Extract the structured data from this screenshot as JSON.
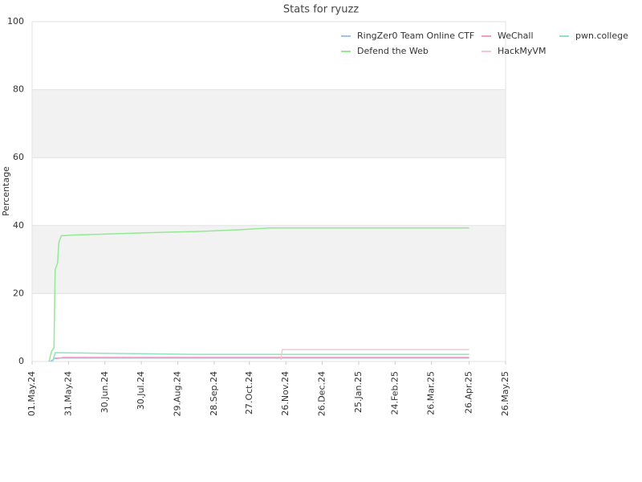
{
  "chart_data": {
    "type": "line",
    "title": "Stats for ryuzz",
    "y_label": "Percentage",
    "ylim": [
      0,
      100
    ],
    "yticks": [
      0,
      20,
      40,
      60,
      80,
      100
    ],
    "xlim": [
      "2024-05-01",
      "2025-05-26"
    ],
    "xticks": [
      {
        "value": "2024-05-01",
        "label": "01.May.24"
      },
      {
        "value": "2024-05-31",
        "label": "31.May.24"
      },
      {
        "value": "2024-06-30",
        "label": "30.Jun.24"
      },
      {
        "value": "2024-07-30",
        "label": "30.Jul.24"
      },
      {
        "value": "2024-08-29",
        "label": "29.Aug.24"
      },
      {
        "value": "2024-09-28",
        "label": "28.Sep.24"
      },
      {
        "value": "2024-10-27",
        "label": "27.Oct.24"
      },
      {
        "value": "2024-11-26",
        "label": "26.Nov.24"
      },
      {
        "value": "2024-12-26",
        "label": "26.Dec.24"
      },
      {
        "value": "2025-01-25",
        "label": "25.Jan.25"
      },
      {
        "value": "2025-02-24",
        "label": "24.Feb.25"
      },
      {
        "value": "2025-03-26",
        "label": "26.Mar.25"
      },
      {
        "value": "2025-04-26",
        "label": "26.Apr.25"
      },
      {
        "value": "2025-05-26",
        "label": "26.May.25"
      }
    ],
    "grid": true,
    "legend": "top-right",
    "series": [
      {
        "name": "RingZer0 Team Online CTF",
        "color": "#9cc3ee",
        "x": [
          "2024-05-16",
          "2024-05-20",
          "2025-04-26"
        ],
        "values": [
          0,
          1,
          1
        ]
      },
      {
        "name": "WeChall",
        "color": "#f2a0b6",
        "x": [
          "2024-05-20",
          "2024-05-27",
          "2025-04-26"
        ],
        "values": [
          0.8,
          1.2,
          1.2
        ]
      },
      {
        "name": "pwn.college",
        "color": "#8fe3c2",
        "x": [
          "2024-05-18",
          "2024-05-20",
          "2024-07-06",
          "2024-09-12",
          "2025-04-26"
        ],
        "values": [
          0,
          2.6,
          2.4,
          2.1,
          2.1
        ]
      },
      {
        "name": "Defend the Web",
        "color": "#92ea92",
        "x": [
          "2024-05-15",
          "2024-05-17",
          "2024-05-19",
          "2024-05-20",
          "2024-05-22",
          "2024-05-23",
          "2024-05-25",
          "2024-06-03",
          "2024-06-30",
          "2024-07-26",
          "2024-08-15",
          "2024-09-17",
          "2024-10-20",
          "2024-11-13",
          "2025-04-26"
        ],
        "values": [
          0,
          3,
          4,
          27,
          29,
          35,
          37,
          37.2,
          37.5,
          37.8,
          38,
          38.3,
          38.8,
          39.3,
          39.3
        ]
      },
      {
        "name": "HackMyVM",
        "color": "#f7c6d0",
        "x": [
          "2024-11-22",
          "2024-11-23",
          "2025-04-26"
        ],
        "values": [
          0.5,
          3.5,
          3.5
        ]
      }
    ]
  }
}
